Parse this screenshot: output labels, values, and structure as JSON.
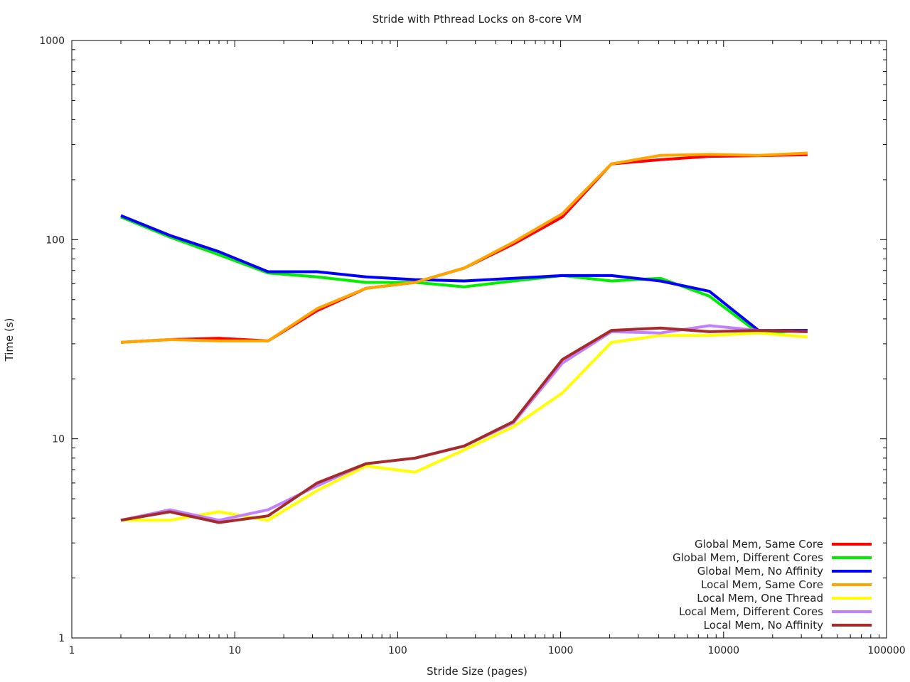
{
  "chart_data": {
    "type": "line",
    "title": "Stride with Pthread Locks on 8-core VM",
    "xlabel": "Stride Size (pages)",
    "ylabel": "Time (s)",
    "x_scale": "log",
    "y_scale": "log",
    "xlim": [
      1,
      100000
    ],
    "ylim": [
      1,
      1000
    ],
    "x_ticks": [
      "1",
      "10",
      "100",
      "1000",
      "10000",
      "100000"
    ],
    "y_ticks": [
      "1",
      "10",
      "100",
      "1000"
    ],
    "grid": false,
    "legend_position": "bottom-right",
    "x": [
      2,
      4,
      8,
      16,
      32,
      64,
      128,
      256,
      512,
      1024,
      2048,
      4096,
      8192,
      16384,
      32768
    ],
    "series": [
      {
        "name": "Global Mem,  Same Core",
        "color": "#ff0000",
        "values": [
          30.5,
          31.5,
          32,
          31,
          44,
          57,
          61,
          72,
          95,
          130,
          240,
          252,
          262,
          264,
          267
        ]
      },
      {
        "name": "Global Mem,  Different Cores",
        "color": "#00ee00",
        "values": [
          130,
          103,
          84,
          68,
          65,
          61,
          61,
          58,
          62,
          66,
          62,
          64,
          52,
          34,
          35
        ]
      },
      {
        "name": "Global Mem,  No Affinity",
        "color": "#0000ff",
        "values": [
          132,
          105,
          87,
          69,
          69,
          65,
          63,
          62,
          64,
          66,
          66,
          62,
          55,
          35,
          35
        ]
      },
      {
        "name": "Local Mem,  Same Core",
        "color": "#ffa500",
        "values": [
          30.5,
          31.5,
          31,
          31,
          45,
          57,
          61,
          72,
          97,
          135,
          240,
          265,
          268,
          265,
          272
        ]
      },
      {
        "name": "Local Mem,  One Thread",
        "color": "#ffff00",
        "values": [
          3.9,
          3.9,
          4.3,
          3.9,
          5.5,
          7.3,
          6.8,
          8.8,
          11.5,
          17,
          30.5,
          33,
          33,
          34,
          32.5
        ]
      },
      {
        "name": "Local Mem,  Different Cores",
        "color": "#c080ff",
        "values": [
          3.9,
          4.4,
          3.9,
          4.4,
          5.8,
          7.5,
          8,
          9.2,
          12,
          24,
          34.5,
          34,
          37,
          35,
          34.5
        ]
      },
      {
        "name": "Local Mem,  No Affinity",
        "color": "#a52a2a",
        "values": [
          3.9,
          4.3,
          3.8,
          4.1,
          6,
          7.5,
          8,
          9.2,
          12.2,
          25,
          35,
          36,
          34.5,
          35,
          34.5
        ]
      }
    ]
  }
}
